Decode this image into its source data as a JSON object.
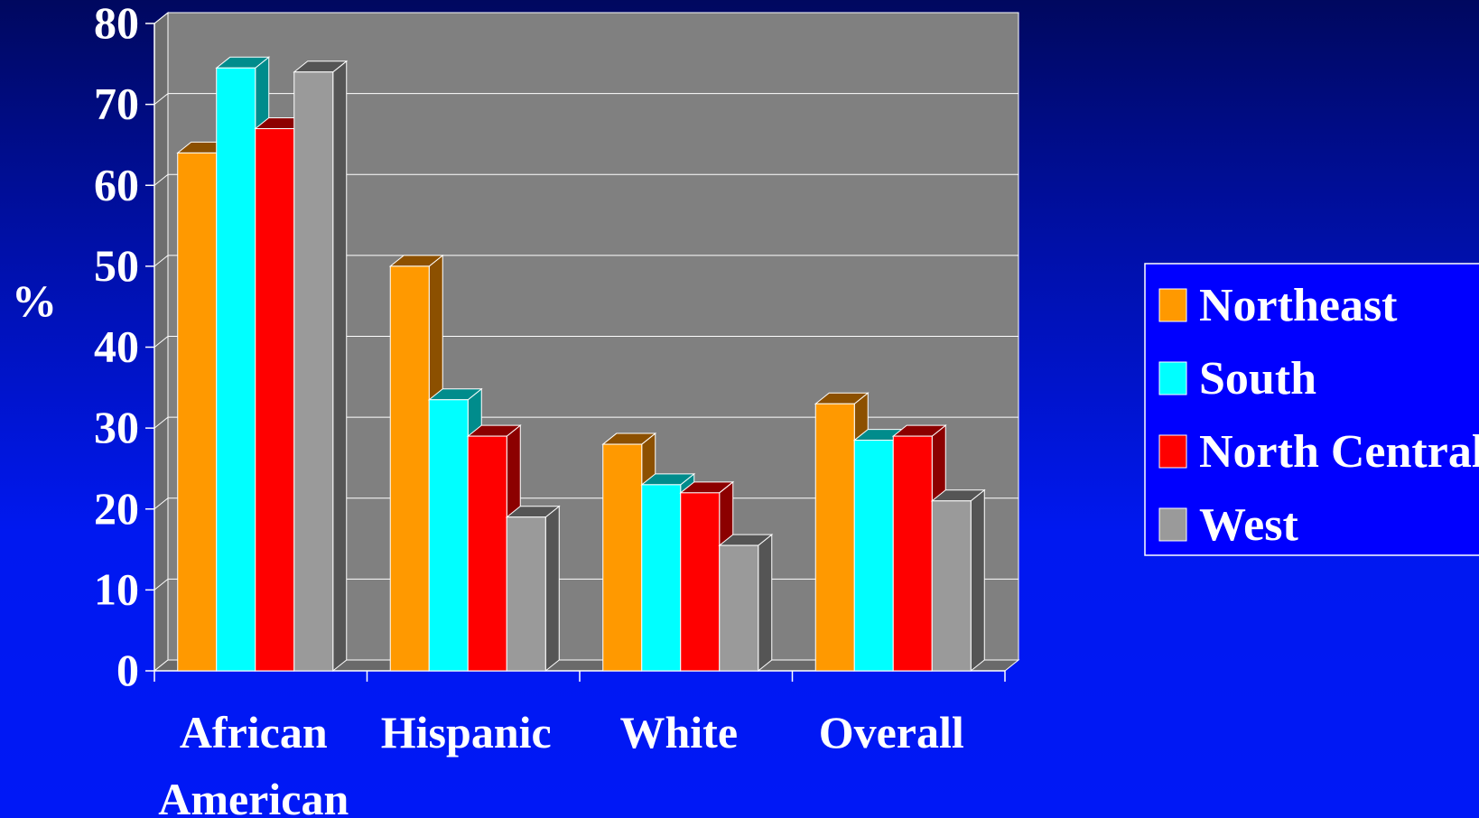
{
  "chart_data": {
    "type": "bar",
    "title": "",
    "xlabel": "",
    "ylabel": "%",
    "ylim": [
      0,
      80
    ],
    "yticks": [
      "0",
      "10",
      "20",
      "30",
      "40",
      "50",
      "60",
      "70",
      "80"
    ],
    "categories": [
      [
        "African",
        "American"
      ],
      [
        "Hispanic"
      ],
      [
        "White"
      ],
      [
        "Overall"
      ]
    ],
    "series": [
      {
        "name": "Northeast",
        "color": "#ff9900",
        "dark": "#8c5000",
        "values": [
          64,
          50,
          28,
          33
        ]
      },
      {
        "name": "South",
        "color": "#00ffff",
        "dark": "#008c8c",
        "values": [
          74.5,
          33.5,
          23,
          28.5
        ]
      },
      {
        "name": "North Central",
        "color": "#ff0000",
        "dark": "#8c0000",
        "values": [
          67,
          29,
          22,
          29
        ]
      },
      {
        "name": "West",
        "color": "#9a9a9a",
        "dark": "#555555",
        "values": [
          74,
          19,
          15.5,
          21
        ]
      }
    ],
    "grid": true,
    "legend_position": "right",
    "background_wall": "#808080",
    "legend_background": "#0000ff"
  }
}
